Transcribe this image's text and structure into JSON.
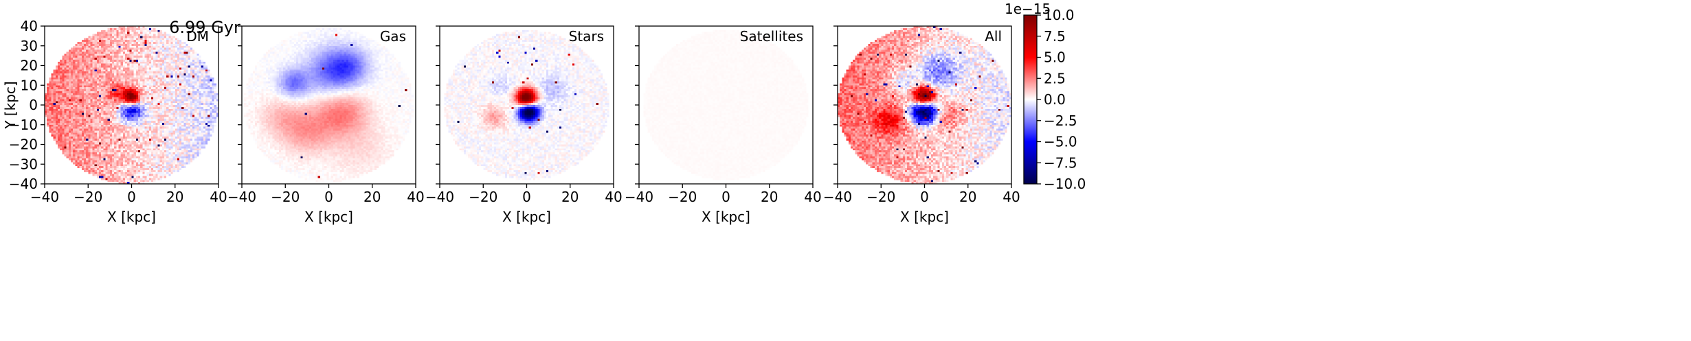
{
  "figure": {
    "title": "6.99 Gyr"
  },
  "colorbar": {
    "cmap": "seismic",
    "min": -10.0,
    "max": 10.0,
    "offset_label": "1e−15",
    "tick_labels": [
      "−10.0",
      "−7.5",
      "−5.0",
      "−2.5",
      "0.0",
      "2.5",
      "5.0",
      "7.5",
      "10.0"
    ],
    "tick_values": [
      -10.0,
      -7.5,
      -5.0,
      -2.5,
      0.0,
      2.5,
      5.0,
      7.5,
      10.0
    ],
    "colors": {
      "low": "#00004c",
      "mid": "#ffffff",
      "high": "#800000"
    }
  },
  "chart_data": [
    {
      "type": "heatmap",
      "panel_label": "DM",
      "title": "6.99 Gyr",
      "xlabel": "X [kpc]",
      "ylabel": "Y [kpc]",
      "xlim": [
        -40,
        40
      ],
      "ylim": [
        -40,
        40
      ],
      "x_tick_labels": [
        "−40",
        "−20",
        "0",
        "20",
        "40"
      ],
      "y_tick_labels": [
        "−40",
        "−30",
        "−20",
        "−10",
        "0",
        "10",
        "20",
        "30",
        "40"
      ],
      "disk_radius_kpc": 40,
      "features": [
        {
          "kind": "ramp",
          "value_at_left": 2.8,
          "value_at_right": -0.8
        },
        {
          "kind": "blob",
          "x": 0,
          "y": 4,
          "sigma": 2.5,
          "value": 10
        },
        {
          "kind": "blob",
          "x": 0,
          "y": -3,
          "sigma": 4,
          "value": -6
        },
        {
          "kind": "blob",
          "x": -6,
          "y": 6,
          "sigma": 3.5,
          "value": 3
        }
      ],
      "noise_amplitude": 1.2,
      "speckle_density": 0.012
    },
    {
      "type": "heatmap",
      "panel_label": "Gas",
      "xlabel": "X [kpc]",
      "xlim": [
        -40,
        40
      ],
      "ylim": [
        -40,
        40
      ],
      "x_tick_labels": [
        "−40",
        "−20",
        "0",
        "20",
        "40"
      ],
      "disk_radius_kpc": 39,
      "features": [
        {
          "kind": "blob",
          "x": 2,
          "y": 17,
          "sigma": 8,
          "value": -3.2
        },
        {
          "kind": "blob",
          "x": -16,
          "y": 11,
          "sigma": 5,
          "value": -2.8
        },
        {
          "kind": "blob",
          "x": 10,
          "y": 20,
          "sigma": 6,
          "value": -2.0
        },
        {
          "kind": "blob",
          "x": 6,
          "y": -4,
          "sigma": 8,
          "value": 2.6
        },
        {
          "kind": "blob",
          "x": -10,
          "y": -13,
          "sigma": 8,
          "value": 2.0
        },
        {
          "kind": "blob",
          "x": -22,
          "y": -6,
          "sigma": 7,
          "value": 1.2
        },
        {
          "kind": "blob",
          "x": 14,
          "y": -22,
          "sigma": 10,
          "value": 0.7
        }
      ],
      "noise_amplitude": 0.25,
      "speckle_density": 0.002
    },
    {
      "type": "heatmap",
      "panel_label": "Stars",
      "xlabel": "X [kpc]",
      "xlim": [
        -40,
        40
      ],
      "ylim": [
        -40,
        40
      ],
      "x_tick_labels": [
        "−40",
        "−20",
        "0",
        "20",
        "40"
      ],
      "disk_radius_kpc": 38,
      "features": [
        {
          "kind": "blob",
          "x": 0,
          "y": 3.5,
          "sigma": 3.2,
          "value": 12
        },
        {
          "kind": "blob",
          "x": 1,
          "y": -3.5,
          "sigma": 3.2,
          "value": -12
        },
        {
          "kind": "blob",
          "x": -15,
          "y": -6,
          "sigma": 4,
          "value": 1.8
        },
        {
          "kind": "blob",
          "x": 12,
          "y": 8,
          "sigma": 5,
          "value": -1.2
        },
        {
          "kind": "blob",
          "x": -12,
          "y": 10,
          "sigma": 4,
          "value": -0.8
        }
      ],
      "noise_amplitude": 0.5,
      "speckle_density": 0.006
    },
    {
      "type": "heatmap",
      "panel_label": "Satellites",
      "xlabel": "X [kpc]",
      "xlim": [
        -40,
        40
      ],
      "ylim": [
        -40,
        40
      ],
      "x_tick_labels": [
        "−40",
        "−20",
        "0",
        "20",
        "40"
      ],
      "disk_radius_kpc": 38,
      "features": [
        {
          "kind": "ramp",
          "value_at_left": 0.1,
          "value_at_right": 0.1
        }
      ],
      "noise_amplitude": 0.05,
      "speckle_density": 0
    },
    {
      "type": "heatmap",
      "panel_label": "All",
      "xlabel": "X [kpc]",
      "xlim": [
        -40,
        40
      ],
      "ylim": [
        -40,
        40
      ],
      "x_tick_labels": [
        "−40",
        "−20",
        "0",
        "20",
        "40"
      ],
      "disk_radius_kpc": 40,
      "features": [
        {
          "kind": "ramp",
          "value_at_left": 3.0,
          "value_at_right": -0.5
        },
        {
          "kind": "blob",
          "x": 0,
          "y": 4,
          "sigma": 3.5,
          "value": 12
        },
        {
          "kind": "blob",
          "x": 0,
          "y": -3,
          "sigma": 4.5,
          "value": -12
        },
        {
          "kind": "blob",
          "x": 6,
          "y": 17,
          "sigma": 7,
          "value": -3.5
        },
        {
          "kind": "blob",
          "x": -16,
          "y": -8,
          "sigma": 5,
          "value": 3.5
        },
        {
          "kind": "blob",
          "x": 10,
          "y": -5,
          "sigma": 5,
          "value": 2.5
        },
        {
          "kind": "blob",
          "x": -10,
          "y": 12,
          "sigma": 4,
          "value": -2.0
        }
      ],
      "noise_amplitude": 1.2,
      "speckle_density": 0.012
    }
  ]
}
